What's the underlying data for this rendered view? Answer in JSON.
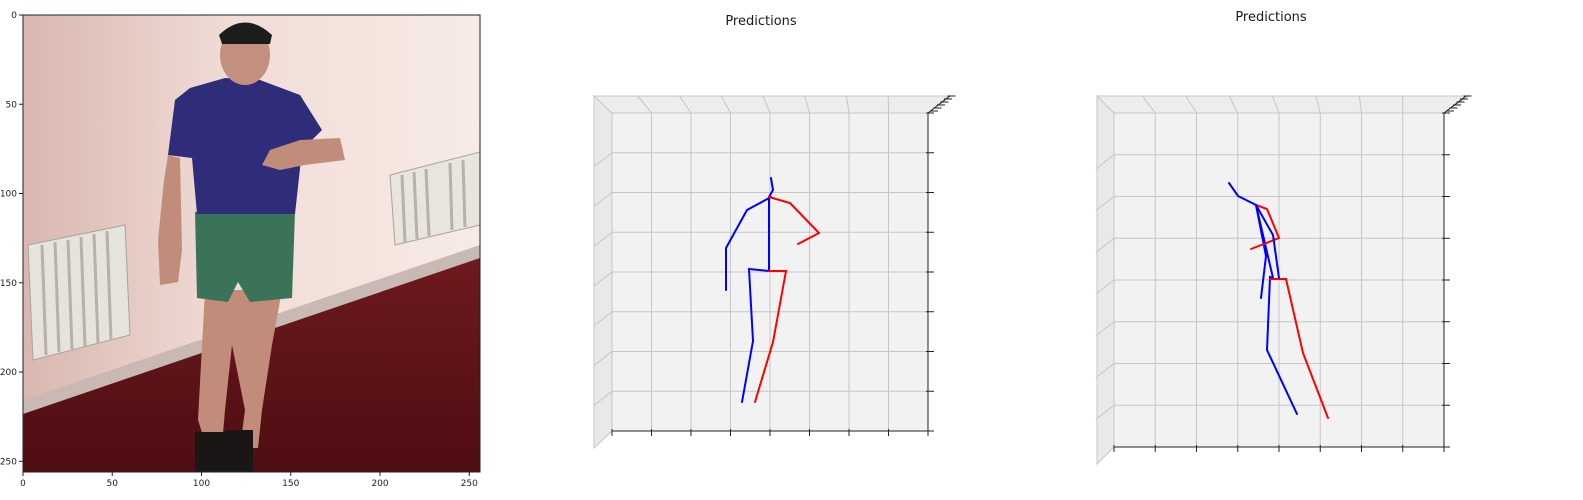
{
  "chart_data": [
    {
      "type": "image",
      "title": "",
      "xlim": [
        0,
        256
      ],
      "ylim": [
        256,
        0
      ],
      "x_ticks": [
        "0",
        "50",
        "100",
        "150",
        "200",
        "250"
      ],
      "y_ticks": [
        "0",
        "50",
        "100",
        "150",
        "200",
        "250"
      ],
      "image_subject": "person in blue t-shirt and green shorts walking in a room with radiators and red carpet"
    },
    {
      "type": "3d-skeleton",
      "title": "Predictions",
      "colors": {
        "left": "#ff0000",
        "right": "#0000ff"
      }
    },
    {
      "type": "3d-skeleton",
      "title": "Predictions",
      "colors": {
        "left": "#ff0000",
        "right": "#0000ff"
      }
    }
  ]
}
